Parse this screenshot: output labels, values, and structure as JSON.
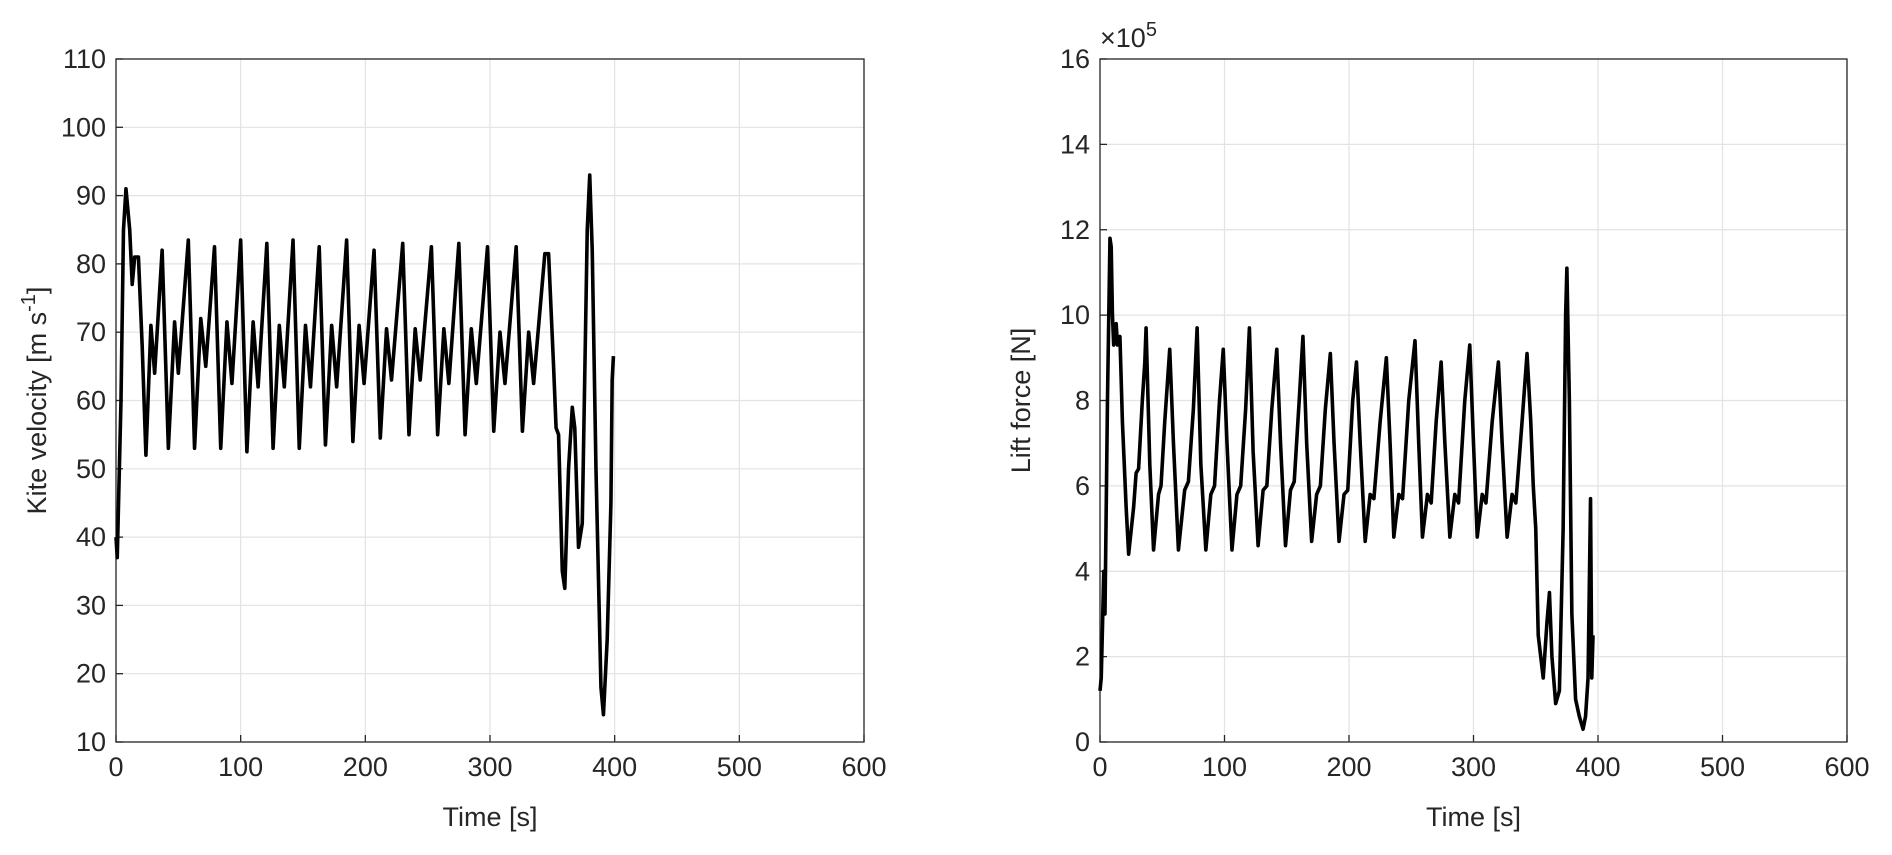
{
  "chart_data": [
    {
      "type": "line",
      "ylabel": [
        "Kite velocity [m s",
        "-1",
        "]"
      ],
      "xlabel": "Time [s]",
      "xlim": [
        0,
        600
      ],
      "xticks": [
        0,
        100,
        200,
        300,
        400,
        500,
        600
      ],
      "ylim": [
        10,
        110
      ],
      "yticks": [
        10,
        20,
        30,
        40,
        50,
        60,
        70,
        80,
        90,
        100,
        110
      ],
      "grid": true,
      "color": "#000000",
      "x": [
        0,
        1,
        4,
        6,
        8,
        11,
        13,
        15,
        18,
        21,
        24,
        28,
        31,
        37,
        42,
        47,
        50,
        58,
        63,
        68,
        72,
        79,
        84,
        89,
        93,
        100,
        105,
        110,
        114,
        121,
        126,
        131,
        135,
        142,
        147,
        152,
        156,
        163,
        168,
        173,
        177,
        185,
        190,
        195,
        199,
        207,
        212,
        217,
        221,
        230,
        235,
        240,
        244,
        253,
        258,
        263,
        267,
        275,
        280,
        285,
        289,
        298,
        303,
        308,
        312,
        321,
        326,
        331,
        335,
        344,
        347,
        351,
        353,
        355,
        358,
        360,
        363,
        366,
        368,
        371,
        374,
        378,
        380,
        382,
        385,
        389,
        391,
        394,
        397,
        398,
        399
      ],
      "values": [
        40,
        37,
        60,
        85,
        91,
        85,
        77,
        81,
        81,
        68,
        52,
        71,
        64,
        82,
        53,
        71.5,
        64,
        83.5,
        53,
        72,
        65,
        82.5,
        53,
        71.5,
        62.5,
        83.5,
        52.5,
        71.5,
        62,
        83,
        53,
        71,
        62,
        83.5,
        53,
        71,
        62,
        82.5,
        53.5,
        71,
        62,
        83.5,
        54,
        71,
        62.5,
        82,
        54.5,
        70.5,
        63,
        83,
        55,
        70.5,
        63,
        82.5,
        55,
        70.5,
        62.5,
        83,
        55,
        70.5,
        62.5,
        82.5,
        55.5,
        70,
        62.5,
        82.5,
        55.5,
        70,
        62.5,
        81.5,
        81.5,
        65,
        56,
        55,
        35,
        32.5,
        50,
        59,
        56,
        38.5,
        42,
        85,
        93,
        82,
        50,
        18,
        14,
        25,
        45,
        63,
        66.5
      ]
    },
    {
      "type": "line",
      "ylabel": [
        "Lift force [N]"
      ],
      "y_multiplier": [
        "×10",
        "5"
      ],
      "xlabel": "Time [s]",
      "xlim": [
        0,
        600
      ],
      "xticks": [
        0,
        100,
        200,
        300,
        400,
        500,
        600
      ],
      "ylim": [
        0,
        16
      ],
      "yticks": [
        0,
        2,
        4,
        6,
        8,
        10,
        12,
        14,
        16
      ],
      "grid": true,
      "color": "#000000",
      "x": [
        0,
        1,
        2,
        3,
        4,
        6,
        8,
        9,
        10,
        11,
        13,
        14,
        16,
        18,
        21,
        23,
        27,
        29,
        31,
        34,
        36,
        37,
        40,
        43,
        47,
        49,
        52,
        56,
        59,
        63,
        68,
        71,
        75,
        78,
        81,
        85,
        89,
        92,
        96,
        99,
        102,
        106,
        110,
        113,
        117,
        120,
        123,
        127,
        131,
        134,
        138,
        142,
        145,
        149,
        153,
        156,
        160,
        163,
        166,
        170,
        174,
        177,
        181,
        185,
        188,
        192,
        196,
        199,
        203,
        206,
        209,
        213,
        217,
        220,
        225,
        230,
        233,
        236,
        240,
        243,
        248,
        253,
        256,
        259,
        263,
        266,
        270,
        274,
        277,
        281,
        285,
        288,
        293,
        297,
        300,
        303,
        307,
        310,
        315,
        320,
        323,
        327,
        331,
        334,
        339,
        343,
        346,
        348,
        350,
        352,
        354,
        356,
        359,
        361,
        363,
        366,
        369,
        372,
        374,
        375,
        377,
        379,
        382,
        385,
        388,
        390,
        392,
        394,
        395,
        396
      ],
      "values": [
        1.2,
        1.5,
        2.7,
        4,
        3,
        8,
        11.8,
        11.6,
        10,
        9.3,
        9.8,
        9.3,
        9.5,
        7.5,
        5.5,
        4.4,
        5.5,
        6.3,
        6.4,
        8,
        8.9,
        9.7,
        6.5,
        4.5,
        5.8,
        6.0,
        7.5,
        9.2,
        7,
        4.5,
        5.9,
        6.1,
        7.8,
        9.7,
        6.5,
        4.5,
        5.8,
        6.0,
        8,
        9.2,
        7,
        4.5,
        5.8,
        6.0,
        7.8,
        9.7,
        6.8,
        4.6,
        5.9,
        6.0,
        7.8,
        9.2,
        7,
        4.6,
        5.9,
        6.1,
        8,
        9.5,
        7,
        4.7,
        5.8,
        6.0,
        7.8,
        9.1,
        7,
        4.7,
        5.8,
        5.9,
        8,
        8.9,
        7,
        4.7,
        5.8,
        5.7,
        7.5,
        9.0,
        7,
        4.8,
        5.8,
        5.7,
        8,
        9.4,
        7,
        4.8,
        5.8,
        5.6,
        7.5,
        8.9,
        7,
        4.8,
        5.8,
        5.6,
        8,
        9.3,
        7,
        4.8,
        5.8,
        5.6,
        7.5,
        8.9,
        7,
        4.8,
        5.8,
        5.6,
        7.5,
        9.1,
        7.5,
        6,
        5,
        2.5,
        2,
        1.5,
        2.8,
        3.5,
        2,
        0.9,
        1.2,
        5,
        10,
        11.1,
        8,
        3,
        1,
        0.6,
        0.3,
        0.6,
        1.5,
        5.7,
        1.5,
        2.5
      ]
    }
  ]
}
